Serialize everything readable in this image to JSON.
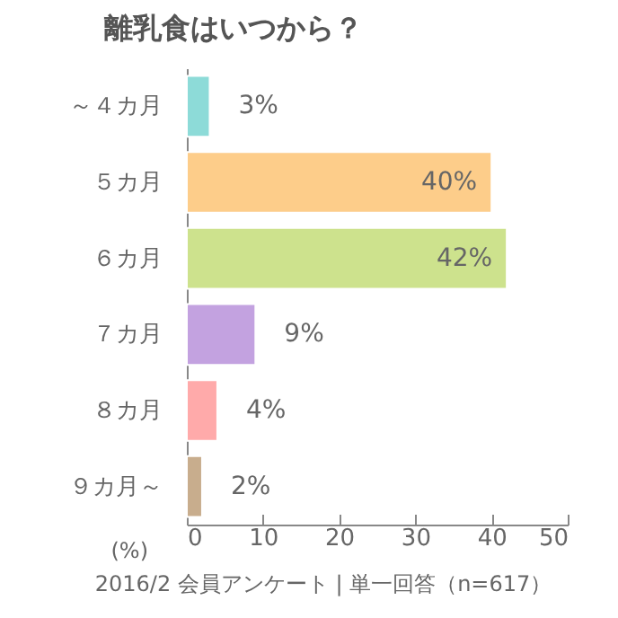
{
  "chart_data": {
    "type": "bar",
    "orientation": "horizontal",
    "title": "離乳食はいつから？",
    "xlabel": "(%)",
    "categories": [
      "～４カ月",
      "５カ月",
      "６カ月",
      "７カ月",
      "８カ月",
      "９カ月～"
    ],
    "values": [
      3,
      40,
      42,
      9,
      4,
      2
    ],
    "colors": [
      "#8ddbd8",
      "#fdcd8a",
      "#cde28d",
      "#c3a2e0",
      "#ffaaaa",
      "#c8ad8d"
    ],
    "value_labels": [
      "3%",
      "40%",
      "42%",
      "9%",
      "4%",
      "2%"
    ],
    "xlim": [
      0,
      50
    ],
    "xticks": [
      0,
      10,
      20,
      30,
      40,
      50
    ],
    "grid": false,
    "legend": false,
    "annotations": [
      "2016/2 会員アンケート | 単一回答（n=617）"
    ]
  }
}
